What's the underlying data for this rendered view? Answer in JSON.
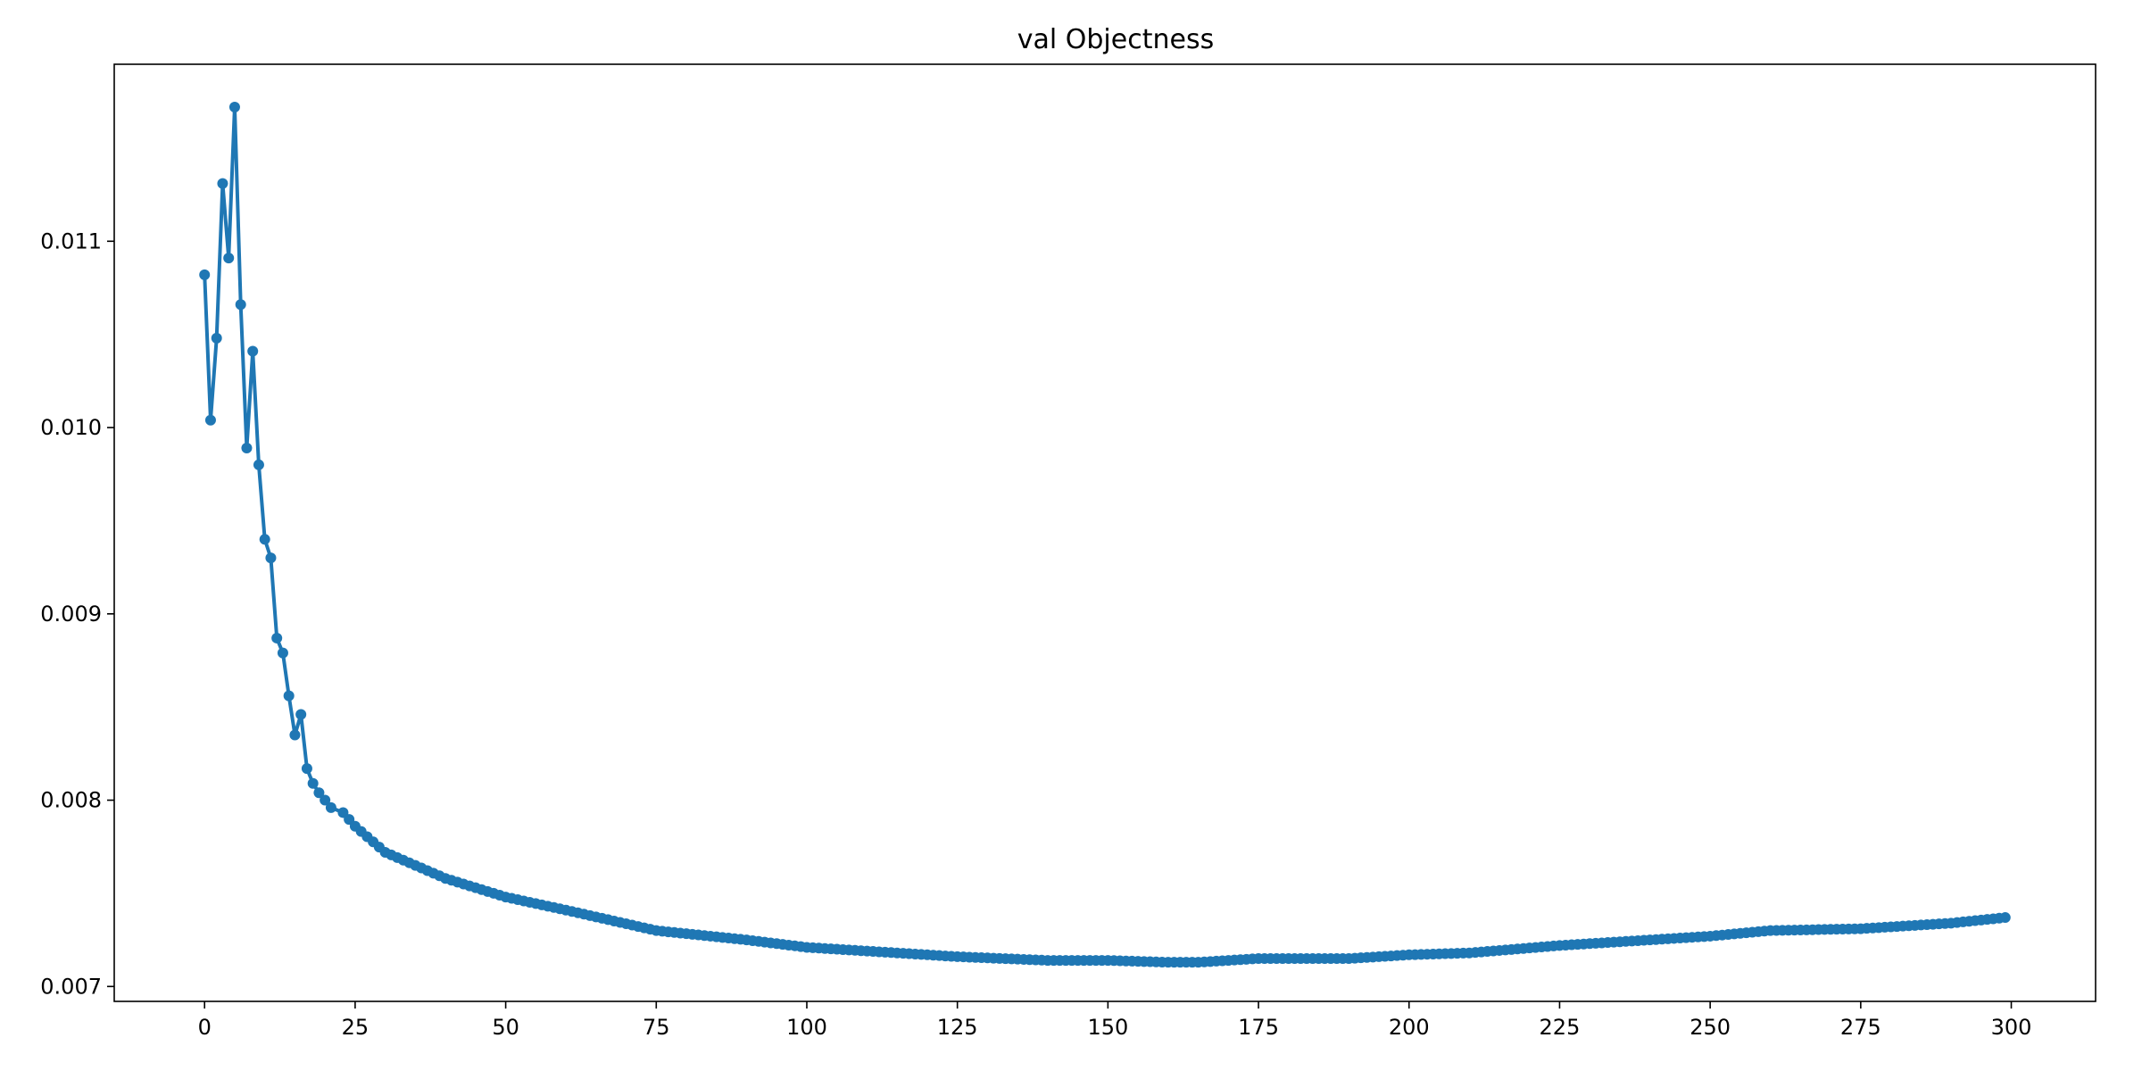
{
  "chart_data": {
    "type": "line",
    "title": "val Objectness",
    "xlabel": "",
    "ylabel": "",
    "xlim": [
      -15,
      314
    ],
    "ylim": [
      0.00692,
      0.01195
    ],
    "xticks": [
      0,
      25,
      50,
      75,
      100,
      125,
      150,
      175,
      200,
      225,
      250,
      275,
      300
    ],
    "yticks": [
      0.007,
      0.008,
      0.009,
      0.01,
      0.011
    ],
    "ytick_labels": [
      "0.007",
      "0.008",
      "0.009",
      "0.010",
      "0.011"
    ],
    "grid": false,
    "legend": "none",
    "color": "#1f77b4",
    "marker": "circle",
    "series": [
      {
        "name": "",
        "head": [
          0.01082,
          0.01004,
          0.01048,
          0.01131,
          0.01091,
          0.01172,
          0.01066,
          0.00989,
          0.01041,
          0.0098,
          0.0094,
          0.0093,
          0.00887,
          0.00879,
          0.00856,
          0.00835,
          0.00846,
          0.00817,
          0.00809,
          0.00804,
          0.008,
          0.00796
        ],
        "tail_knots": [
          [
            22,
            0.00797
          ],
          [
            25,
            0.00786
          ],
          [
            30,
            0.00772
          ],
          [
            40,
            0.00758
          ],
          [
            50,
            0.00748
          ],
          [
            60,
            0.00741
          ],
          [
            75,
            0.0073
          ],
          [
            90,
            0.00725
          ],
          [
            100,
            0.00721
          ],
          [
            110,
            0.00719
          ],
          [
            125,
            0.00716
          ],
          [
            140,
            0.00714
          ],
          [
            150,
            0.00714
          ],
          [
            160,
            0.00713
          ],
          [
            165,
            0.00713
          ],
          [
            175,
            0.00715
          ],
          [
            190,
            0.00715
          ],
          [
            200,
            0.00717
          ],
          [
            210,
            0.00718
          ],
          [
            225,
            0.00722
          ],
          [
            240,
            0.00725
          ],
          [
            250,
            0.00727
          ],
          [
            260,
            0.0073
          ],
          [
            275,
            0.00731
          ],
          [
            290,
            0.00734
          ],
          [
            299,
            0.00737
          ]
        ]
      }
    ]
  }
}
